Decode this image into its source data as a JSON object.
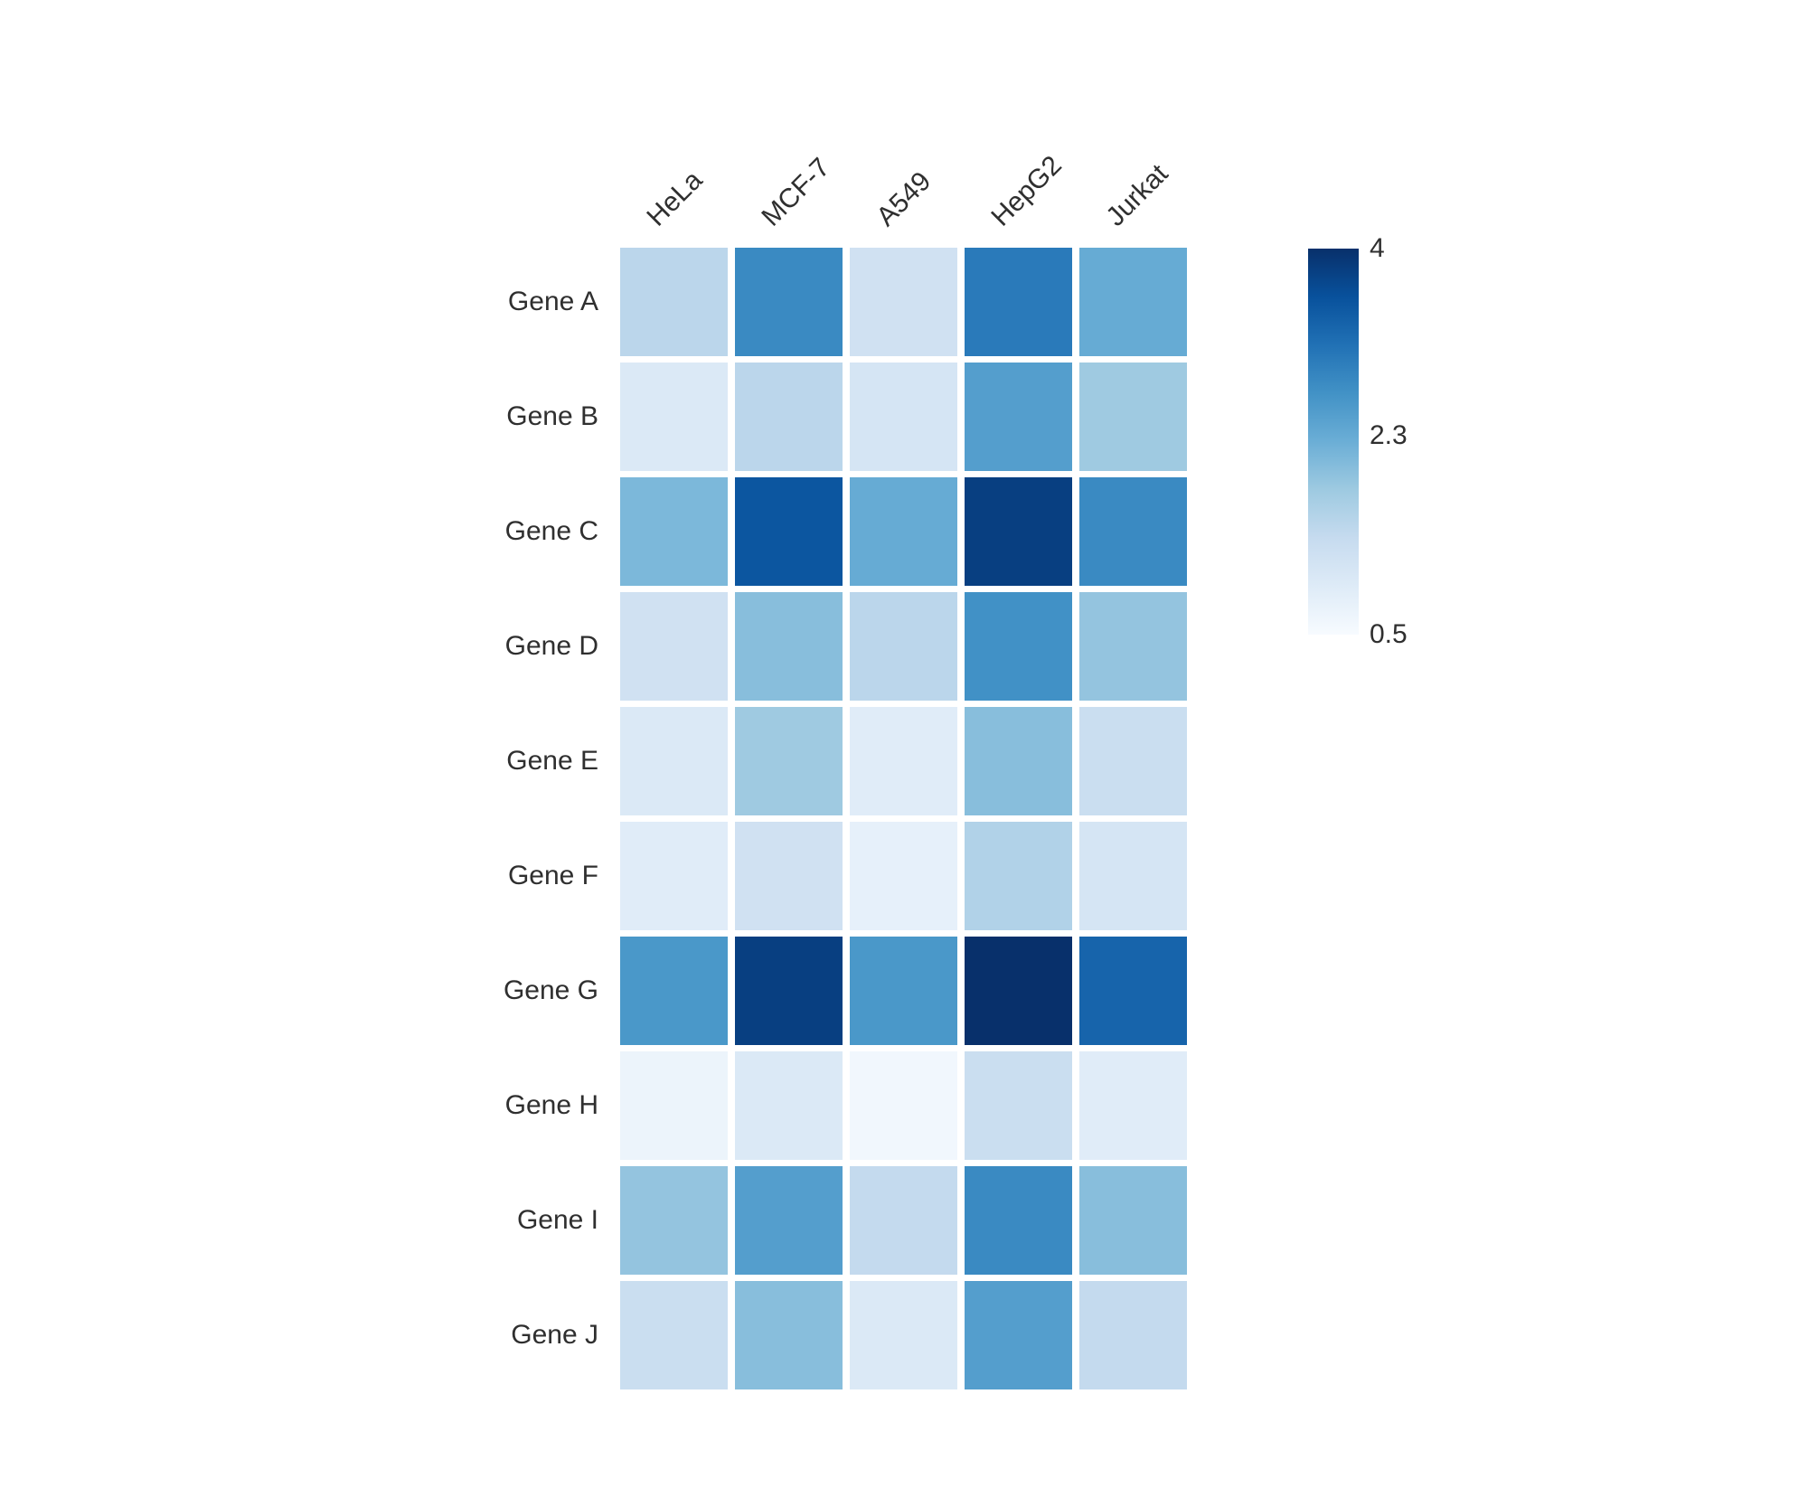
{
  "figure": {
    "background": "#ffffff",
    "text_color": "#2f2f2f"
  },
  "chart_data": {
    "type": "heatmap",
    "title": "",
    "xlabel": "",
    "ylabel": "",
    "columns": [
      "HeLa",
      "MCF-7",
      "A549",
      "HepG2",
      "Jurkat"
    ],
    "rows": [
      "Gene A",
      "Gene B",
      "Gene C",
      "Gene D",
      "Gene E",
      "Gene F",
      "Gene G",
      "Gene H",
      "Gene I",
      "Gene J"
    ],
    "values": [
      [
        1.5,
        2.8,
        1.2,
        3.0,
        2.3
      ],
      [
        1.0,
        1.5,
        1.1,
        2.5,
        1.8
      ],
      [
        2.1,
        3.5,
        2.3,
        3.8,
        2.8
      ],
      [
        1.2,
        2.0,
        1.5,
        2.7,
        1.9
      ],
      [
        1.0,
        1.8,
        0.9,
        2.0,
        1.3
      ],
      [
        0.9,
        1.2,
        0.8,
        1.6,
        1.1
      ],
      [
        2.6,
        3.8,
        2.6,
        4.0,
        3.3
      ],
      [
        0.7,
        1.0,
        0.6,
        1.3,
        0.9
      ],
      [
        1.9,
        2.5,
        1.4,
        2.8,
        2.0
      ],
      [
        1.3,
        2.0,
        1.0,
        2.5,
        1.4
      ]
    ],
    "vmin": 0.5,
    "vmax": 4,
    "colorscale": {
      "name": "Blues",
      "stops": [
        "#f7fbff",
        "#deebf7",
        "#c6dbef",
        "#9ecae1",
        "#6baed6",
        "#4292c6",
        "#2171b5",
        "#08519c",
        "#08306b"
      ]
    },
    "colorbar_ticks": [
      {
        "label": "4",
        "value": 4
      },
      {
        "label": "2.3",
        "value": 2.3
      },
      {
        "label": "0.5",
        "value": 0.5
      }
    ],
    "legend_position": "right",
    "grid": false,
    "column_label_rotation_deg": -45
  }
}
